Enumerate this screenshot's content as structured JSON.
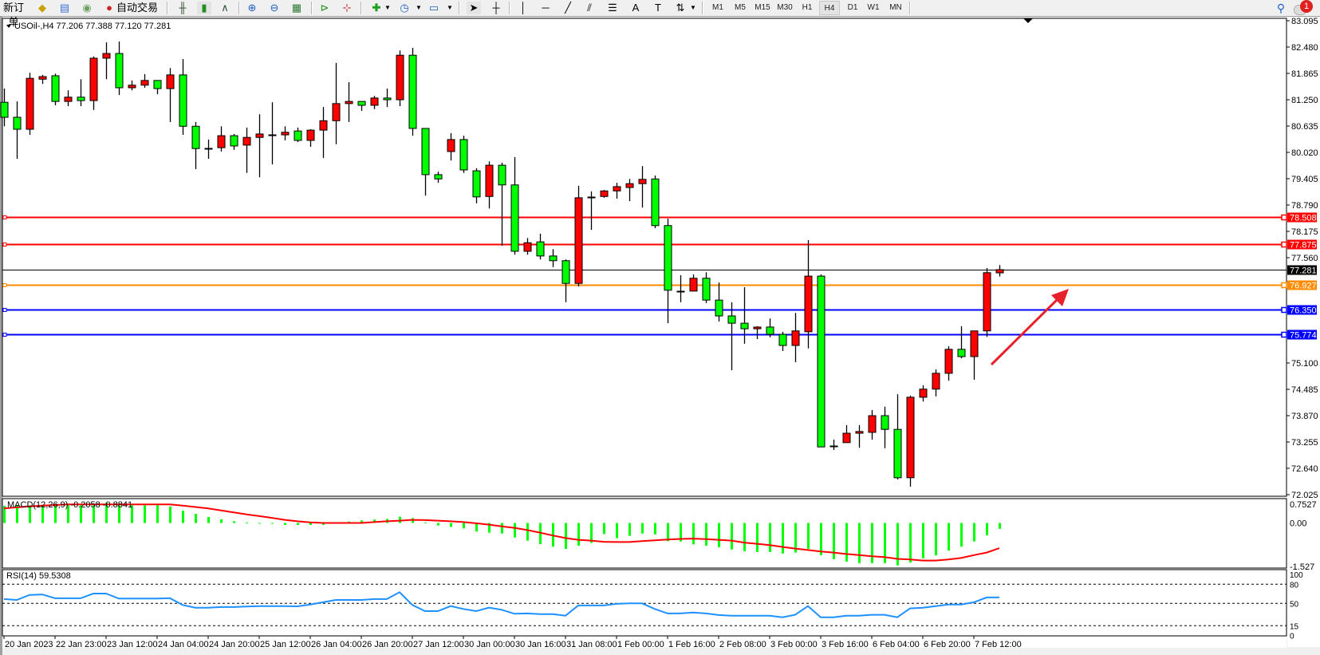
{
  "toolbar": {
    "new_order_label": "新订单",
    "auto_trading_label": "自动交易",
    "timeframes": [
      "M1",
      "M5",
      "M15",
      "M30",
      "H1",
      "H4",
      "D1",
      "W1",
      "MN"
    ],
    "active_timeframe": "H4",
    "notification_count": "1",
    "icons": [
      "metaeditor-icon",
      "history-icon",
      "signals-icon",
      "auto-trading-icon",
      "bar-chart-icon",
      "candlestick-icon",
      "line-chart-icon",
      "zoom-in-icon",
      "zoom-out-icon",
      "tile-windows-icon",
      "chart-shift-icon",
      "auto-scroll-icon",
      "indicators-icon",
      "periods-icon",
      "templates-icon",
      "cursor-icon",
      "crosshair-icon",
      "vertical-line-icon",
      "horizontal-line-icon",
      "trendline-icon",
      "equidistant-channel-icon",
      "fibonacci-icon",
      "text-icon",
      "text-label-icon",
      "arrows-icon",
      "search-icon",
      "notification-icon"
    ]
  },
  "chart": {
    "symbol_info": "USOil-,H4  77.206 77.388 77.120 77.281",
    "macd_label": "MACD(12,26,9) -0.2058 -0.8841",
    "rsi_label": "RSI(14) 59.5308",
    "colors": {
      "bull": "#ff0000",
      "bear": "#00ff00",
      "background": "#ffffff",
      "macd_hist": "#00ff00",
      "macd_signal": "#ff0000",
      "rsi": "#1e90ff",
      "annotation_arrow": "#e8202a"
    }
  },
  "chart_data": {
    "type": "candlestick",
    "symbol": "USOil-",
    "timeframe": "H4",
    "price_axis_ticks": [
      "83.095",
      "82.480",
      "81.865",
      "81.250",
      "80.635",
      "80.020",
      "79.405",
      "78.790",
      "78.175",
      "77.560",
      "75.100",
      "74.485",
      "73.870",
      "73.255",
      "72.640",
      "72.025"
    ],
    "price_range": [
      72.025,
      83.095
    ],
    "time_labels": [
      "20 Jan 2023",
      "22 Jan 23:00",
      "23 Jan 12:00",
      "24 Jan 04:00",
      "24 Jan 20:00",
      "25 Jan 12:00",
      "26 Jan 04:00",
      "26 Jan 20:00",
      "27 Jan 12:00",
      "30 Jan 00:00",
      "30 Jan 16:00",
      "31 Jan 08:00",
      "1 Feb 00:00",
      "1 Feb 16:00",
      "2 Feb 08:00",
      "3 Feb 00:00",
      "3 Feb 16:00",
      "6 Feb 04:00",
      "6 Feb 20:00",
      "7 Feb 12:00"
    ],
    "current_price": {
      "label": "77.281",
      "value": 77.281,
      "color": "#000000"
    },
    "horizontal_lines": [
      {
        "label": "78.508",
        "value": 78.508,
        "color": "#ff0000"
      },
      {
        "label": "77.875",
        "value": 77.875,
        "color": "#ff0000"
      },
      {
        "label": "76.927",
        "value": 76.927,
        "color": "#ff8c00"
      },
      {
        "label": "76.350",
        "value": 76.35,
        "color": "#0000ff"
      },
      {
        "label": "75.774",
        "value": 75.774,
        "color": "#0000ff"
      }
    ],
    "ohlc": [
      [
        81.19,
        81.51,
        80.63,
        80.84
      ],
      [
        80.84,
        81.21,
        79.87,
        80.56
      ],
      [
        80.56,
        81.88,
        80.43,
        81.75
      ],
      [
        81.73,
        81.83,
        81.62,
        81.79
      ],
      [
        81.81,
        81.86,
        81.12,
        81.21
      ],
      [
        81.21,
        81.47,
        81.1,
        81.31
      ],
      [
        81.31,
        81.73,
        81.1,
        81.23
      ],
      [
        81.23,
        82.26,
        81.01,
        82.22
      ],
      [
        82.22,
        82.59,
        81.73,
        82.33
      ],
      [
        82.33,
        82.61,
        81.36,
        81.53
      ],
      [
        81.53,
        81.7,
        81.47,
        81.59
      ],
      [
        81.59,
        81.85,
        81.53,
        81.7
      ],
      [
        81.7,
        81.7,
        81.38,
        81.51
      ],
      [
        81.51,
        81.99,
        80.73,
        81.83
      ],
      [
        81.83,
        82.2,
        80.43,
        80.63
      ],
      [
        80.63,
        80.73,
        79.63,
        80.11
      ],
      [
        80.11,
        80.32,
        79.87,
        80.12
      ],
      [
        80.13,
        80.63,
        80.04,
        80.41
      ],
      [
        80.41,
        80.45,
        80.08,
        80.17
      ],
      [
        80.19,
        80.6,
        79.54,
        80.37
      ],
      [
        80.37,
        80.91,
        79.44,
        80.45
      ],
      [
        80.45,
        81.19,
        79.74,
        80.43
      ],
      [
        80.43,
        80.63,
        80.3,
        80.49
      ],
      [
        80.52,
        80.6,
        80.26,
        80.3
      ],
      [
        80.3,
        80.56,
        80.15,
        80.54
      ],
      [
        80.54,
        81.08,
        79.89,
        80.76
      ],
      [
        80.76,
        82.11,
        80.21,
        81.16
      ],
      [
        81.16,
        81.66,
        80.73,
        81.21
      ],
      [
        81.21,
        81.21,
        80.99,
        81.12
      ],
      [
        81.12,
        81.34,
        81.03,
        81.29
      ],
      [
        81.29,
        81.51,
        81.08,
        81.25
      ],
      [
        81.25,
        82.4,
        81.1,
        82.29
      ],
      [
        82.29,
        82.46,
        80.41,
        80.58
      ],
      [
        80.58,
        80.58,
        79.01,
        79.5
      ],
      [
        79.5,
        79.57,
        79.31,
        79.4
      ],
      [
        80.04,
        80.47,
        79.83,
        80.32
      ],
      [
        80.32,
        80.41,
        79.54,
        79.61
      ],
      [
        79.59,
        79.65,
        78.83,
        78.98
      ],
      [
        78.99,
        79.81,
        78.71,
        79.72
      ],
      [
        79.72,
        79.78,
        77.84,
        79.26
      ],
      [
        79.26,
        79.91,
        77.63,
        77.71
      ],
      [
        77.71,
        78.02,
        77.63,
        77.91
      ],
      [
        77.93,
        78.12,
        77.52,
        77.6
      ],
      [
        77.6,
        77.76,
        77.34,
        77.49
      ],
      [
        77.49,
        77.52,
        76.52,
        76.96
      ],
      [
        76.96,
        79.24,
        76.89,
        78.96
      ],
      [
        78.96,
        79.11,
        78.21,
        78.97
      ],
      [
        78.99,
        79.14,
        78.96,
        79.12
      ],
      [
        79.12,
        79.31,
        78.94,
        79.22
      ],
      [
        79.2,
        79.4,
        78.88,
        79.29
      ],
      [
        79.29,
        79.7,
        78.73,
        79.39
      ],
      [
        79.4,
        79.48,
        78.25,
        78.31
      ],
      [
        78.31,
        78.47,
        76.03,
        76.8
      ],
      [
        76.8,
        77.15,
        76.52,
        76.78
      ],
      [
        76.78,
        77.17,
        76.78,
        77.08
      ],
      [
        77.08,
        77.22,
        76.5,
        76.57
      ],
      [
        76.57,
        76.98,
        76.07,
        76.2
      ],
      [
        76.2,
        76.52,
        74.93,
        76.03
      ],
      [
        76.03,
        76.87,
        75.55,
        75.9
      ],
      [
        75.9,
        75.96,
        75.66,
        75.94
      ],
      [
        75.94,
        76.14,
        75.7,
        75.77
      ],
      [
        75.77,
        75.83,
        75.38,
        75.51
      ],
      [
        75.51,
        76.27,
        75.12,
        75.85
      ],
      [
        75.83,
        77.97,
        75.44,
        77.13
      ],
      [
        77.13,
        77.17,
        73.14,
        73.14
      ],
      [
        73.14,
        73.31,
        73.07,
        73.16
      ],
      [
        73.24,
        73.65,
        73.24,
        73.46
      ],
      [
        73.46,
        73.65,
        73.12,
        73.5
      ],
      [
        73.48,
        74.0,
        73.31,
        73.87
      ],
      [
        73.87,
        74.08,
        73.11,
        73.55
      ],
      [
        73.55,
        74.37,
        72.38,
        72.42
      ],
      [
        72.42,
        74.34,
        72.21,
        74.3
      ],
      [
        74.3,
        74.58,
        74.2,
        74.49
      ],
      [
        74.49,
        74.95,
        74.32,
        74.86
      ],
      [
        74.86,
        75.49,
        74.69,
        75.42
      ],
      [
        75.42,
        75.96,
        75.21,
        75.25
      ],
      [
        75.25,
        75.85,
        74.71,
        75.85
      ],
      [
        75.85,
        77.32,
        75.71,
        77.21
      ],
      [
        77.206,
        77.388,
        77.12,
        77.281
      ]
    ],
    "macd": {
      "axis_ticks": [
        "0.7527",
        "0.00",
        "-1.527"
      ],
      "range": [
        -1.527,
        0.7527
      ],
      "histogram": [
        0.6,
        0.62,
        0.62,
        0.62,
        0.62,
        0.62,
        0.62,
        0.62,
        0.71,
        0.62,
        0.62,
        0.62,
        0.62,
        0.58,
        0.43,
        0.32,
        0.21,
        0.13,
        0.06,
        0.01,
        0.0,
        -0.02,
        -0.07,
        -0.07,
        -0.07,
        -0.07,
        0.0,
        0.05,
        0.09,
        0.12,
        0.14,
        0.22,
        0.17,
        0.02,
        -0.09,
        -0.14,
        -0.19,
        -0.3,
        -0.34,
        -0.37,
        -0.51,
        -0.62,
        -0.74,
        -0.83,
        -0.91,
        -0.8,
        -0.7,
        -0.39,
        -0.53,
        -0.45,
        -0.37,
        -0.4,
        -0.64,
        -0.65,
        -0.75,
        -0.8,
        -0.85,
        -0.93,
        -0.99,
        -1.02,
        -1.02,
        -1.07,
        -1.04,
        -0.91,
        -1.13,
        -1.27,
        -1.36,
        -1.41,
        -1.41,
        -1.41,
        -1.49,
        -1.39,
        -1.24,
        -1.14,
        -0.97,
        -0.83,
        -0.65,
        -0.43,
        -0.2058
      ],
      "signal": [
        0.51,
        0.55,
        0.58,
        0.61,
        0.63,
        0.65,
        0.65,
        0.65,
        0.65,
        0.65,
        0.65,
        0.65,
        0.65,
        0.65,
        0.61,
        0.56,
        0.51,
        0.44,
        0.37,
        0.3,
        0.24,
        0.18,
        0.11,
        0.06,
        0.02,
        0.0,
        0.0,
        0.0,
        0.0,
        0.03,
        0.06,
        0.08,
        0.11,
        0.1,
        0.08,
        0.06,
        0.03,
        -0.01,
        -0.06,
        -0.12,
        -0.17,
        -0.25,
        -0.34,
        -0.44,
        -0.53,
        -0.59,
        -0.62,
        -0.66,
        -0.67,
        -0.67,
        -0.64,
        -0.61,
        -0.58,
        -0.56,
        -0.55,
        -0.57,
        -0.59,
        -0.62,
        -0.69,
        -0.73,
        -0.78,
        -0.84,
        -0.9,
        -0.95,
        -1.0,
        -1.04,
        -1.09,
        -1.13,
        -1.17,
        -1.2,
        -1.26,
        -1.28,
        -1.32,
        -1.32,
        -1.28,
        -1.23,
        -1.13,
        -1.04,
        -0.884
      ]
    },
    "rsi": {
      "axis_ticks": [
        "100",
        "80",
        "50",
        "15",
        "0"
      ],
      "levels": [
        80,
        50,
        15
      ],
      "range": [
        0,
        100
      ],
      "values": [
        56.7,
        55.4,
        63.3,
        64,
        58,
        58,
        58,
        65.4,
        65.4,
        57.5,
        57.5,
        57.5,
        57.5,
        58.3,
        47.5,
        43.3,
        43.3,
        44.2,
        44.2,
        45,
        45.8,
        45.8,
        45.8,
        45.4,
        48.3,
        51.7,
        55.4,
        55.4,
        55.4,
        56.7,
        56.7,
        67.5,
        47.5,
        37.9,
        37.9,
        45.8,
        41.3,
        37.9,
        43.3,
        40,
        33.8,
        34.2,
        33.3,
        33.3,
        30.8,
        46.7,
        46.7,
        46.7,
        49.2,
        50,
        50,
        41.3,
        34.2,
        34.2,
        35.8,
        34.2,
        31.7,
        30.8,
        30.8,
        30.8,
        30.8,
        28.3,
        32.1,
        45.8,
        28.3,
        28.3,
        30.8,
        30.8,
        32.1,
        32.1,
        28.3,
        42.1,
        43.3,
        45.8,
        48.3,
        48.3,
        51.7,
        59.2,
        59.53
      ]
    }
  }
}
